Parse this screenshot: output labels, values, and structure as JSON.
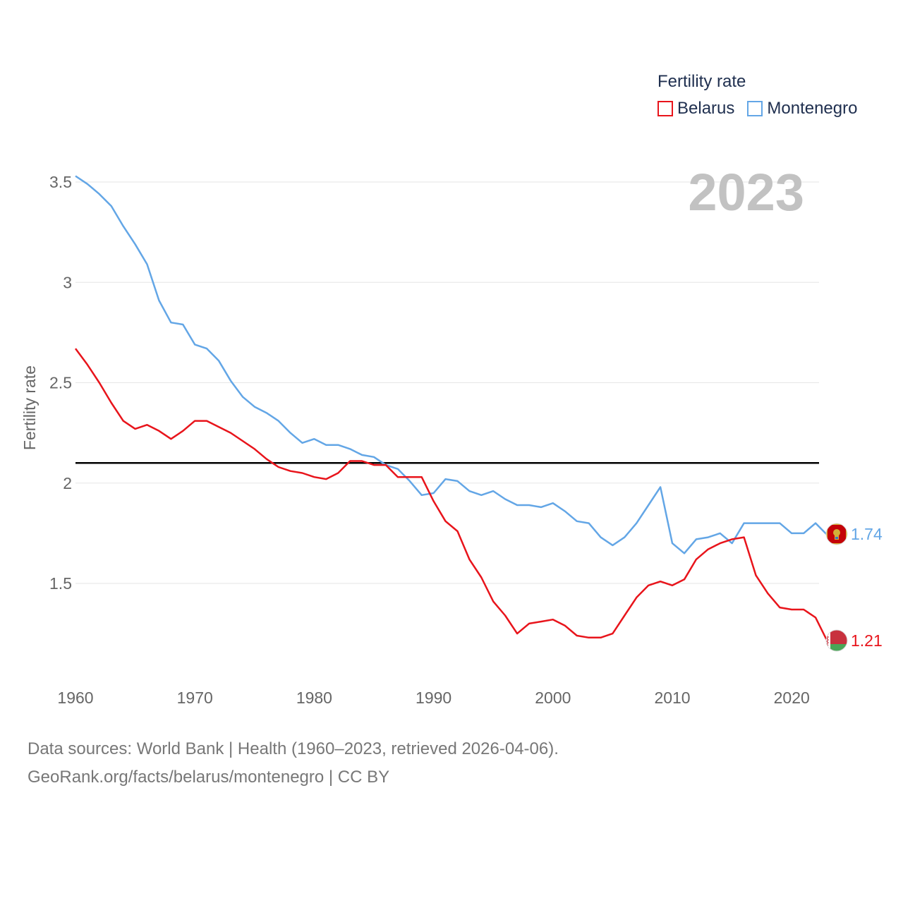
{
  "legend": {
    "title": "Fertility rate",
    "items": [
      {
        "name": "Belarus",
        "color": "#e8141b"
      },
      {
        "name": "Montenegro",
        "color": "#63a6e6"
      }
    ]
  },
  "chart_data": {
    "type": "line",
    "ylabel": "Fertility rate",
    "year_label": "2023",
    "ylim": [
      1.06,
      3.58
    ],
    "xlim": [
      1960,
      2023
    ],
    "y_ticks": [
      1.5,
      2,
      2.5,
      3,
      3.5
    ],
    "y_tick_labels": [
      "1.5",
      "2",
      "2.5",
      "3",
      "3.5"
    ],
    "x_ticks": [
      1960,
      1970,
      1980,
      1990,
      2000,
      2010,
      2020
    ],
    "x_tick_labels": [
      "1960",
      "1970",
      "1980",
      "1990",
      "2000",
      "2010",
      "2020"
    ],
    "reference_line": {
      "value": 2.1,
      "color": "#000000"
    },
    "x": [
      1960,
      1961,
      1962,
      1963,
      1964,
      1965,
      1966,
      1967,
      1968,
      1969,
      1970,
      1971,
      1972,
      1973,
      1974,
      1975,
      1976,
      1977,
      1978,
      1979,
      1980,
      1981,
      1982,
      1983,
      1984,
      1985,
      1986,
      1987,
      1988,
      1989,
      1990,
      1991,
      1992,
      1993,
      1994,
      1995,
      1996,
      1997,
      1998,
      1999,
      2000,
      2001,
      2002,
      2003,
      2004,
      2005,
      2006,
      2007,
      2008,
      2009,
      2010,
      2011,
      2012,
      2013,
      2014,
      2015,
      2016,
      2017,
      2018,
      2019,
      2020,
      2021,
      2022,
      2023
    ],
    "series": [
      {
        "name": "Belarus",
        "color": "#e8141b",
        "end_label": "1.21",
        "values": [
          2.67,
          2.59,
          2.5,
          2.4,
          2.31,
          2.27,
          2.29,
          2.26,
          2.22,
          2.26,
          2.31,
          2.31,
          2.28,
          2.25,
          2.21,
          2.17,
          2.12,
          2.08,
          2.06,
          2.05,
          2.03,
          2.02,
          2.05,
          2.11,
          2.11,
          2.09,
          2.09,
          2.03,
          2.03,
          2.03,
          1.91,
          1.81,
          1.76,
          1.62,
          1.53,
          1.41,
          1.34,
          1.25,
          1.3,
          1.31,
          1.32,
          1.29,
          1.24,
          1.23,
          1.23,
          1.25,
          1.34,
          1.43,
          1.49,
          1.51,
          1.49,
          1.52,
          1.62,
          1.67,
          1.7,
          1.72,
          1.73,
          1.54,
          1.45,
          1.38,
          1.37,
          1.37,
          1.33,
          1.21
        ]
      },
      {
        "name": "Montenegro",
        "color": "#63a6e6",
        "end_label": "1.74",
        "values": [
          3.53,
          3.49,
          3.44,
          3.38,
          3.28,
          3.19,
          3.09,
          2.91,
          2.8,
          2.79,
          2.69,
          2.67,
          2.61,
          2.51,
          2.43,
          2.38,
          2.35,
          2.31,
          2.25,
          2.2,
          2.22,
          2.19,
          2.19,
          2.17,
          2.14,
          2.13,
          2.09,
          2.07,
          2.01,
          1.94,
          1.95,
          2.02,
          2.01,
          1.96,
          1.94,
          1.96,
          1.92,
          1.89,
          1.89,
          1.88,
          1.9,
          1.86,
          1.81,
          1.8,
          1.73,
          1.69,
          1.73,
          1.8,
          1.89,
          1.98,
          1.7,
          1.65,
          1.72,
          1.73,
          1.75,
          1.7,
          1.8,
          1.8,
          1.8,
          1.8,
          1.75,
          1.75,
          1.8,
          1.74
        ]
      }
    ]
  },
  "footer": {
    "line1": "Data sources: World Bank | Health (1960–2023, retrieved 2026-04-06).",
    "line2": "GeoRank.org/facts/belarus/montenegro | CC BY"
  }
}
